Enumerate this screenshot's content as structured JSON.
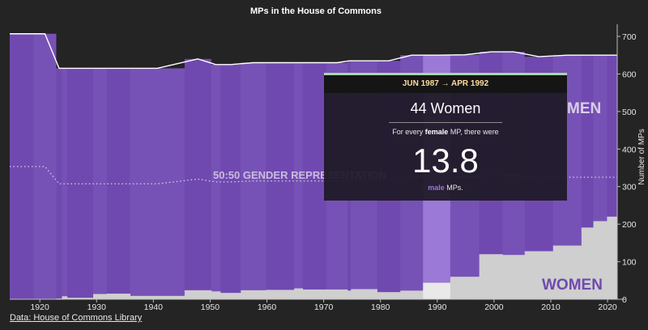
{
  "chart_data": {
    "type": "area",
    "title": "MPs in the House of Commons",
    "ylabel": "Number of MPs",
    "xlabel": "",
    "xlim": [
      1914.7,
      2021.7
    ],
    "ylim": [
      0,
      700
    ],
    "x_ticks": [
      1920,
      1930,
      1940,
      1950,
      1960,
      1970,
      1980,
      1990,
      2000,
      2010,
      2020
    ],
    "y_ticks": [
      0,
      100,
      200,
      300,
      400,
      500,
      600,
      700
    ],
    "annotations": {
      "men_label": "MEN",
      "women_label": "WOMEN",
      "parity_label": "50:50 GENDER REPRESENTATION"
    },
    "series": [
      {
        "name": "MEN",
        "color": "#7049b0"
      },
      {
        "name": "WOMEN",
        "color": "#d0d0d0"
      }
    ],
    "periods": [
      {
        "start": 1914.7,
        "end": 1918.9,
        "total": 707,
        "women": 0
      },
      {
        "start": 1918.9,
        "end": 1922.9,
        "total": 707,
        "women": 1
      },
      {
        "start": 1922.9,
        "end": 1923.9,
        "total": 615,
        "women": 2
      },
      {
        "start": 1923.9,
        "end": 1924.8,
        "total": 615,
        "women": 8
      },
      {
        "start": 1924.8,
        "end": 1929.4,
        "total": 615,
        "women": 4
      },
      {
        "start": 1929.4,
        "end": 1931.8,
        "total": 615,
        "women": 14
      },
      {
        "start": 1931.8,
        "end": 1935.9,
        "total": 615,
        "women": 15
      },
      {
        "start": 1935.9,
        "end": 1945.5,
        "total": 615,
        "women": 9
      },
      {
        "start": 1945.5,
        "end": 1950.2,
        "total": 640,
        "women": 24
      },
      {
        "start": 1950.2,
        "end": 1951.8,
        "total": 625,
        "women": 21
      },
      {
        "start": 1951.8,
        "end": 1955.4,
        "total": 625,
        "women": 17
      },
      {
        "start": 1955.4,
        "end": 1959.8,
        "total": 630,
        "women": 24
      },
      {
        "start": 1959.8,
        "end": 1964.8,
        "total": 630,
        "women": 25
      },
      {
        "start": 1964.8,
        "end": 1966.3,
        "total": 630,
        "women": 29
      },
      {
        "start": 1966.3,
        "end": 1970.5,
        "total": 630,
        "women": 26
      },
      {
        "start": 1970.5,
        "end": 1974.2,
        "total": 630,
        "women": 26
      },
      {
        "start": 1974.2,
        "end": 1974.8,
        "total": 635,
        "women": 23
      },
      {
        "start": 1974.8,
        "end": 1979.4,
        "total": 635,
        "women": 27
      },
      {
        "start": 1979.4,
        "end": 1983.5,
        "total": 635,
        "women": 19
      },
      {
        "start": 1983.5,
        "end": 1987.5,
        "total": 650,
        "women": 23
      },
      {
        "start": 1987.5,
        "end": 1992.3,
        "total": 650,
        "women": 44
      },
      {
        "start": 1992.3,
        "end": 1997.4,
        "total": 651,
        "women": 60
      },
      {
        "start": 1997.4,
        "end": 2001.5,
        "total": 659,
        "women": 120
      },
      {
        "start": 2001.5,
        "end": 2005.4,
        "total": 659,
        "women": 118
      },
      {
        "start": 2005.4,
        "end": 2010.4,
        "total": 646,
        "women": 128
      },
      {
        "start": 2010.4,
        "end": 2015.4,
        "total": 650,
        "women": 143
      },
      {
        "start": 2015.4,
        "end": 2017.5,
        "total": 650,
        "women": 191
      },
      {
        "start": 2017.5,
        "end": 2019.9,
        "total": 650,
        "women": 208
      },
      {
        "start": 2019.9,
        "end": 2021.7,
        "total": 650,
        "women": 220
      }
    ],
    "selected_period": 20,
    "tooltip": {
      "period": "JUN 1987 → APR 1992",
      "women_count": "44 Women",
      "sentence_pre": "For every ",
      "sentence_bold": "female",
      "sentence_post": " MP, there were",
      "ratio": "13.8",
      "tail_bold": "male",
      "tail_rest": " MPs."
    }
  },
  "source": {
    "label": "Data: House of Commons Library"
  }
}
